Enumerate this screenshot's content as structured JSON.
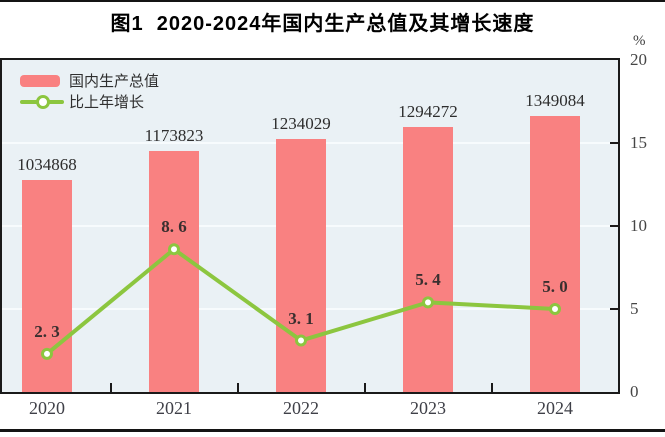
{
  "title": {
    "text": "图1  2020-2024年国内生产总值及其增长速度"
  },
  "legend": {
    "items": [
      {
        "label": "国内生产总值"
      },
      {
        "label": "比上年增长"
      }
    ]
  },
  "chart_data": {
    "type": "bar+line",
    "title": "图1 2020-2024年国内生产总值及其增长速度",
    "categories": [
      "2020",
      "2021",
      "2022",
      "2023",
      "2024"
    ],
    "series": [
      {
        "name": "国内生产总值",
        "type": "bar",
        "values": [
          1034868,
          1173823,
          1234029,
          1294272,
          1349084
        ],
        "value_labels": [
          "1034868",
          "1173823",
          "1234029",
          "1294272",
          "1349084"
        ],
        "color": "#f98181"
      },
      {
        "name": "比上年增长",
        "type": "line",
        "values": [
          2.3,
          8.6,
          3.1,
          5.4,
          5.0
        ],
        "value_labels": [
          "2. 3",
          "8. 6",
          "3. 1",
          "5. 4",
          "5. 0"
        ],
        "color": "#8cc63f"
      }
    ],
    "right_axis": {
      "unit": "%",
      "min": 0,
      "max": 20,
      "ticks": [
        0,
        5,
        10,
        15,
        20
      ],
      "tick_labels": [
        "0",
        "5",
        "10",
        "15",
        "20"
      ]
    },
    "bar_axis_max": 1620000,
    "grid": true,
    "legend_position": "top-left",
    "plot_background": "#eaf1f5",
    "colors": {
      "bar": "#f98181",
      "line": "#8cc63f",
      "marker_fill": "#ffffff",
      "grid": "#f7fbfd",
      "border": "#1a1a1a"
    }
  }
}
